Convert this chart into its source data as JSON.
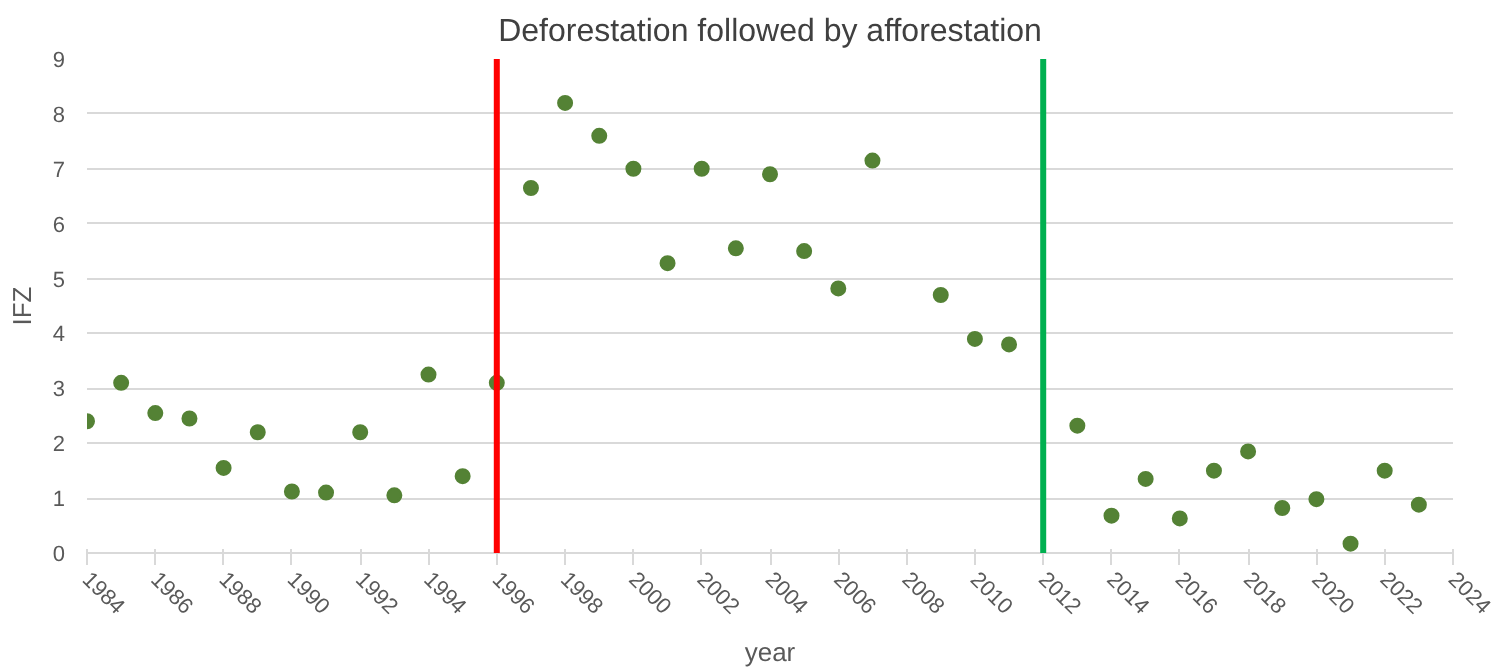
{
  "chart_data": {
    "type": "scatter",
    "title": "Deforestation followed by afforestation",
    "xlabel": "year",
    "ylabel": "IFZ",
    "x": [
      1984,
      1985,
      1986,
      1987,
      1988,
      1989,
      1990,
      1991,
      1992,
      1993,
      1994,
      1995,
      1996,
      1997,
      1998,
      1999,
      2000,
      2001,
      2002,
      2003,
      2004,
      2005,
      2006,
      2007,
      2009,
      2010,
      2011,
      2013,
      2014,
      2015,
      2016,
      2017,
      2018,
      2019,
      2020,
      2021,
      2022,
      2023
    ],
    "series": [
      {
        "color": "#548235",
        "values": [
          2.4,
          3.1,
          2.55,
          2.45,
          1.55,
          2.2,
          1.12,
          1.1,
          2.2,
          1.05,
          3.25,
          1.4,
          3.1,
          6.65,
          8.2,
          7.6,
          7.0,
          5.28,
          7.0,
          5.55,
          6.9,
          5.5,
          4.82,
          7.15,
          4.7,
          3.9,
          3.8,
          2.32,
          0.68,
          1.35,
          0.63,
          1.5,
          1.85,
          0.82,
          0.98,
          0.17,
          1.5,
          0.88
        ]
      }
    ],
    "xlim": [
      1984,
      2024
    ],
    "xticks": [
      1984,
      1986,
      1988,
      1990,
      1992,
      1994,
      1996,
      1998,
      2000,
      2002,
      2004,
      2006,
      2008,
      2010,
      2012,
      2014,
      2016,
      2018,
      2020,
      2022,
      2024
    ],
    "ylim": [
      0,
      9
    ],
    "yticks": [
      0,
      1,
      2,
      3,
      4,
      5,
      6,
      7,
      8,
      9
    ],
    "ref_lines": [
      {
        "axis": "x",
        "value": 1996,
        "color": "#ff0000"
      },
      {
        "axis": "x",
        "value": 2012,
        "color": "#00b050"
      }
    ],
    "grid": "y",
    "marker": "circle"
  }
}
